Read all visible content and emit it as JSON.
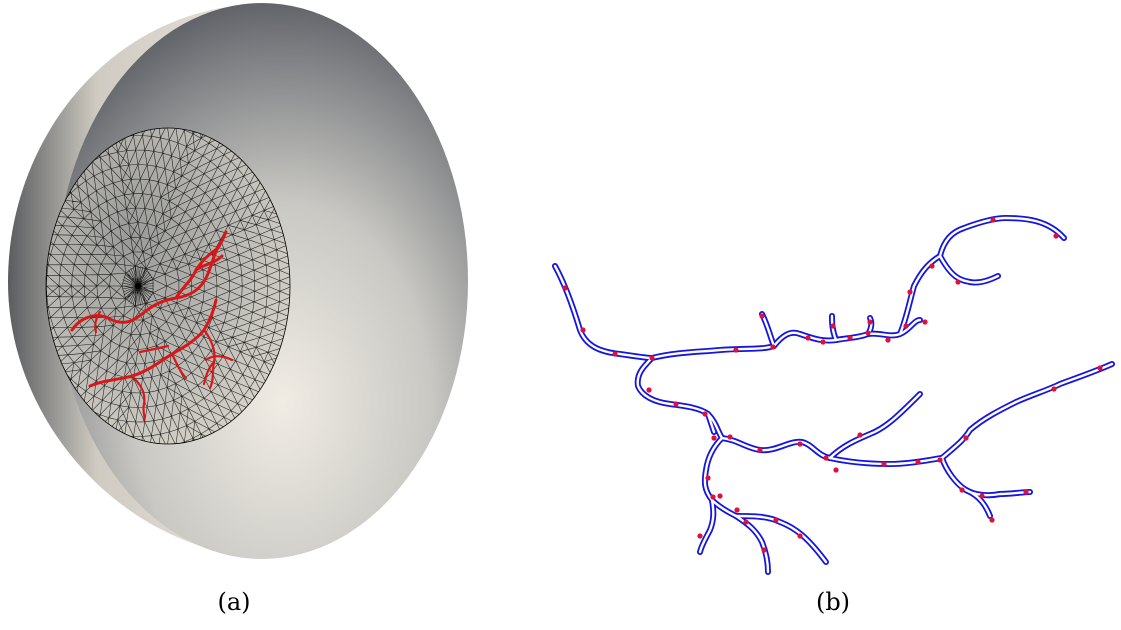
{
  "captions": {
    "a": "(a)",
    "b": "(b)"
  },
  "colors": {
    "background": "#ffffff",
    "mesh_line": "#000000",
    "vessel_3d": "#d81818",
    "vessel_2d": "#1515e0",
    "vessel_fill": "#ffffff",
    "node": "#e0103a",
    "shell_light": "#efebe2",
    "shell_dark": "#4e5156"
  }
}
